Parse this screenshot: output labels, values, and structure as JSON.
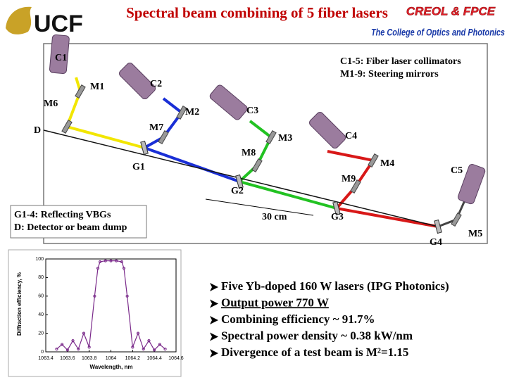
{
  "header": {
    "title": "Spectral beam combining of 5 fiber lasers",
    "logo": "UCF",
    "org": "CREOL & FPCE",
    "college": "The College of Optics and Photonics"
  },
  "diagram": {
    "collimators": [
      "C1",
      "C2",
      "C3",
      "C4",
      "C5"
    ],
    "mirrors": [
      "M1",
      "M2",
      "M3",
      "M4",
      "M5",
      "M6",
      "M7",
      "M8",
      "M9"
    ],
    "gratings": [
      "G1",
      "G2",
      "G3",
      "G4"
    ],
    "detector": "D",
    "scale": "30 cm",
    "legend_top": [
      "C1-5: Fiber laser collimators",
      "M1-9: Steering mirrors"
    ],
    "legend_bottom": [
      "G1-4: Reflecting VBGs",
      "D: Detector or beam dump"
    ]
  },
  "inset_chart": {
    "type": "line",
    "x_label": "Wavelength, nm",
    "y_label": "Diffraction efficiency, %",
    "xlim": [
      1063.4,
      1064.6
    ],
    "ylim": [
      0,
      100
    ],
    "xticks": [
      1063.4,
      1063.6,
      1063.8,
      1064,
      1064.2,
      1064.4,
      1064.6
    ],
    "yticks": [
      0,
      20,
      40,
      60,
      80,
      100
    ],
    "color": "#7a2a8a",
    "x": [
      1063.5,
      1063.55,
      1063.6,
      1063.65,
      1063.7,
      1063.75,
      1063.8,
      1063.85,
      1063.88,
      1063.9,
      1063.95,
      1064.0,
      1064.05,
      1064.1,
      1064.12,
      1064.15,
      1064.2,
      1064.25,
      1064.3,
      1064.35,
      1064.4,
      1064.45,
      1064.5
    ],
    "values": [
      3,
      8,
      2,
      12,
      3,
      20,
      5,
      60,
      90,
      97,
      98,
      98,
      98,
      97,
      90,
      60,
      5,
      20,
      3,
      12,
      2,
      8,
      3
    ]
  },
  "bullets": [
    "Five Yb-doped 160 W lasers (IPG Photonics)",
    "Output power 770 W",
    "Combining efficiency ~ 91.7%",
    "Spectral power density ~ 0.38 kW/nm",
    "Divergence of a test beam is M²=1.15"
  ]
}
